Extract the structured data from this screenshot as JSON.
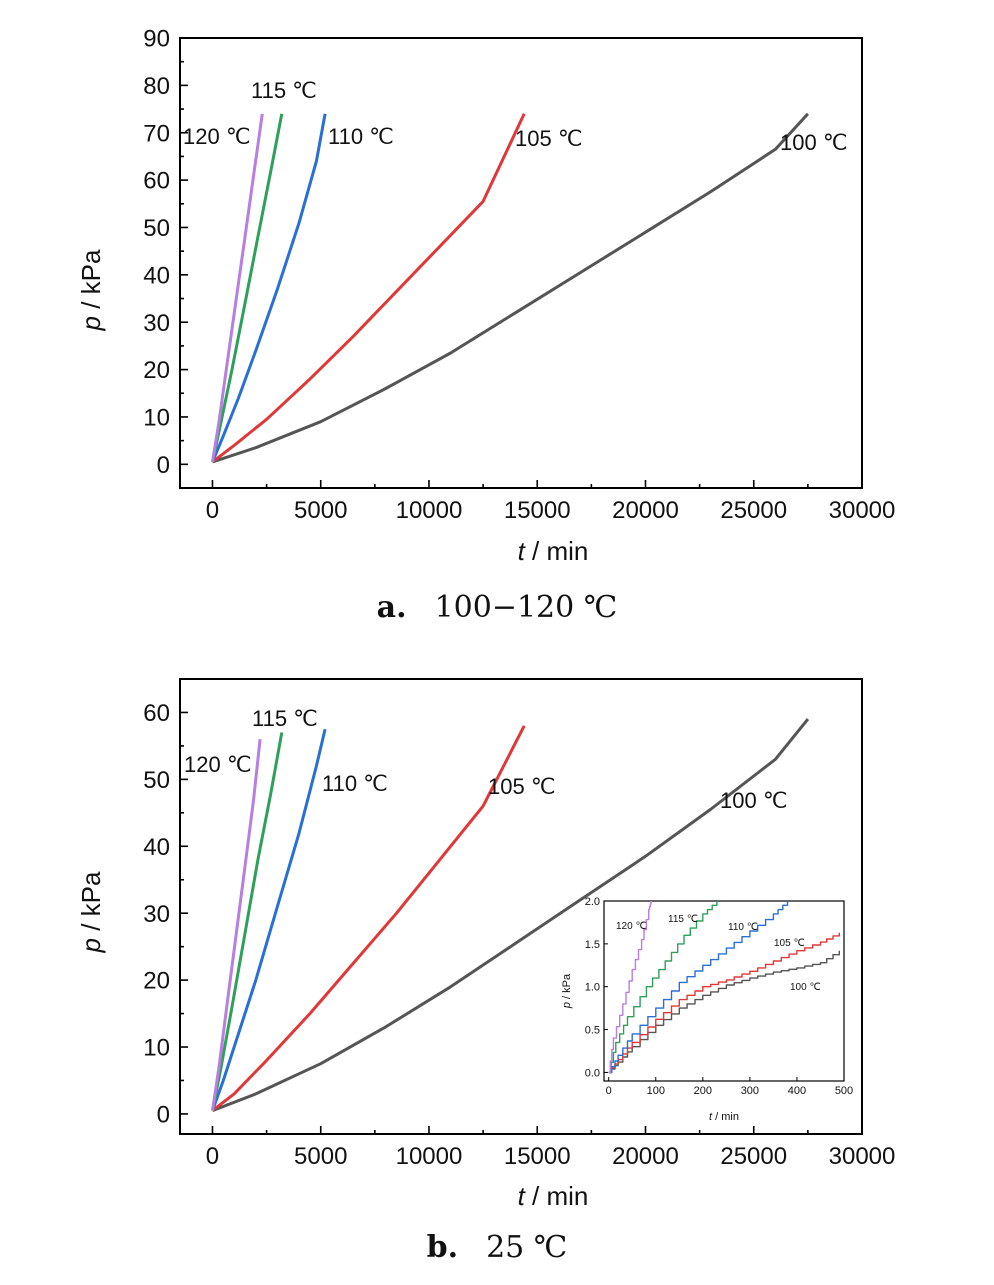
{
  "chart_data": [
    {
      "panel": "a.",
      "caption": "100−120 ℃",
      "type": "line",
      "xlabel_var": "t",
      "xlabel_unit": " / min",
      "ylabel_var": "p",
      "ylabel_unit": " / kPa",
      "xlim": [
        -1500,
        30000
      ],
      "ylim": [
        -5,
        90
      ],
      "xticks": [
        0,
        5000,
        10000,
        15000,
        20000,
        25000,
        30000
      ],
      "yticks": [
        0,
        10,
        20,
        30,
        40,
        50,
        60,
        70,
        80,
        90
      ],
      "grid": false,
      "series": [
        {
          "name": "100 ℃",
          "color": "#555555",
          "x": [
            0,
            2000,
            5000,
            8000,
            11000,
            14000,
            17000,
            20000,
            23000,
            26000,
            27500
          ],
          "y": [
            0.5,
            3.5,
            9,
            16,
            23.5,
            32,
            40.5,
            49,
            57.5,
            66.5,
            74
          ]
        },
        {
          "name": "105 ℃",
          "color": "#e03838",
          "x": [
            0,
            1000,
            2500,
            4500,
            6500,
            8500,
            10500,
            12500,
            14400
          ],
          "y": [
            0.5,
            4,
            9.5,
            18,
            27,
            36.5,
            46,
            55.5,
            74
          ]
        },
        {
          "name": "110 ℃",
          "color": "#2a6fd6",
          "x": [
            0,
            500,
            1200,
            2000,
            3000,
            4000,
            4800,
            5200
          ],
          "y": [
            0.5,
            6,
            14,
            24,
            37,
            51,
            64,
            74
          ]
        },
        {
          "name": "115 ℃",
          "color": "#2fa05a",
          "x": [
            0,
            400,
            900,
            1500,
            2100,
            2700,
            3200
          ],
          "y": [
            0.5,
            9,
            20,
            34,
            48,
            62,
            74
          ]
        },
        {
          "name": "120 ℃",
          "color": "#b87ee0",
          "x": [
            0,
            300,
            700,
            1100,
            1500,
            1900,
            2300
          ],
          "y": [
            0.5,
            9,
            22,
            35,
            48,
            61,
            74
          ]
        }
      ]
    },
    {
      "panel": "b.",
      "caption": "25 ℃",
      "type": "line",
      "xlabel_var": "t",
      "xlabel_unit": " / min",
      "ylabel_var": "p",
      "ylabel_unit": " / kPa",
      "xlim": [
        -1500,
        30000
      ],
      "ylim": [
        -3,
        65
      ],
      "xticks": [
        0,
        5000,
        10000,
        15000,
        20000,
        25000,
        30000
      ],
      "yticks": [
        0,
        10,
        20,
        30,
        40,
        50,
        60
      ],
      "grid": false,
      "series": [
        {
          "name": "100 ℃",
          "color": "#555555",
          "x": [
            0,
            2000,
            5000,
            8000,
            11000,
            14000,
            17000,
            20000,
            23000,
            26000,
            27500
          ],
          "y": [
            0.5,
            3,
            7.5,
            13,
            19,
            25.5,
            32,
            38.5,
            45.5,
            53,
            59
          ]
        },
        {
          "name": "105 ℃",
          "color": "#e03838",
          "x": [
            0,
            1000,
            2500,
            4500,
            6500,
            8500,
            10500,
            12500,
            14400
          ],
          "y": [
            0.5,
            3,
            8,
            15,
            22.5,
            30,
            38,
            46,
            58
          ]
        },
        {
          "name": "110 ℃",
          "color": "#2a6fd6",
          "x": [
            0,
            500,
            1200,
            2000,
            3000,
            4000,
            4800,
            5200
          ],
          "y": [
            0.5,
            5,
            12,
            20,
            31,
            42,
            52,
            57.5
          ]
        },
        {
          "name": "115 ℃",
          "color": "#2fa05a",
          "x": [
            0,
            400,
            900,
            1500,
            2100,
            2700,
            3200
          ],
          "y": [
            0.5,
            7,
            16,
            27,
            38,
            48,
            57
          ]
        },
        {
          "name": "120 ℃",
          "color": "#b87ee0",
          "x": [
            0,
            300,
            700,
            1100,
            1500,
            1900,
            2200
          ],
          "y": [
            0.5,
            7,
            17,
            27,
            37,
            47,
            56
          ]
        }
      ],
      "inset": {
        "xlabel_var": "t",
        "xlabel_unit": " / min",
        "ylabel_var": "p",
        "ylabel_unit": " / kPa",
        "xlim": [
          -10,
          500
        ],
        "ylim": [
          -0.1,
          2.0
        ],
        "xticks": [
          0,
          100,
          200,
          300,
          400,
          500
        ],
        "yticks": [
          0.0,
          0.5,
          1.0,
          1.5,
          2.0
        ],
        "series": [
          {
            "name": "100 ℃",
            "color": "#555555",
            "x": [
              0,
              20,
              50,
              100,
              150,
              200,
              250,
              300,
              350,
              400,
              450,
              490
            ],
            "y": [
              0,
              0.12,
              0.3,
              0.55,
              0.75,
              0.9,
              1.02,
              1.1,
              1.17,
              1.22,
              1.28,
              1.42
            ]
          },
          {
            "name": "105 ℃",
            "color": "#e03838",
            "x": [
              0,
              20,
              50,
              100,
              150,
              200,
              250,
              300,
              350,
              400,
              450,
              490
            ],
            "y": [
              0,
              0.15,
              0.35,
              0.62,
              0.85,
              1.0,
              1.08,
              1.18,
              1.3,
              1.42,
              1.52,
              1.63
            ]
          },
          {
            "name": "110 ℃",
            "color": "#2a6fd6",
            "x": [
              0,
              20,
              50,
              100,
              150,
              200,
              250,
              300,
              350,
              380
            ],
            "y": [
              0,
              0.2,
              0.45,
              0.75,
              1.05,
              1.25,
              1.45,
              1.65,
              1.85,
              2.0
            ]
          },
          {
            "name": "115 ℃",
            "color": "#2fa05a",
            "x": [
              0,
              15,
              40,
              80,
              120,
              160,
              200,
              230
            ],
            "y": [
              0,
              0.35,
              0.65,
              1.0,
              1.3,
              1.6,
              1.85,
              2.0
            ]
          },
          {
            "name": "120 ℃",
            "color": "#b87ee0",
            "x": [
              0,
              10,
              30,
              50,
              70,
              85,
              90
            ],
            "y": [
              0,
              0.4,
              0.8,
              1.2,
              1.55,
              1.9,
              2.0
            ]
          }
        ]
      }
    }
  ]
}
